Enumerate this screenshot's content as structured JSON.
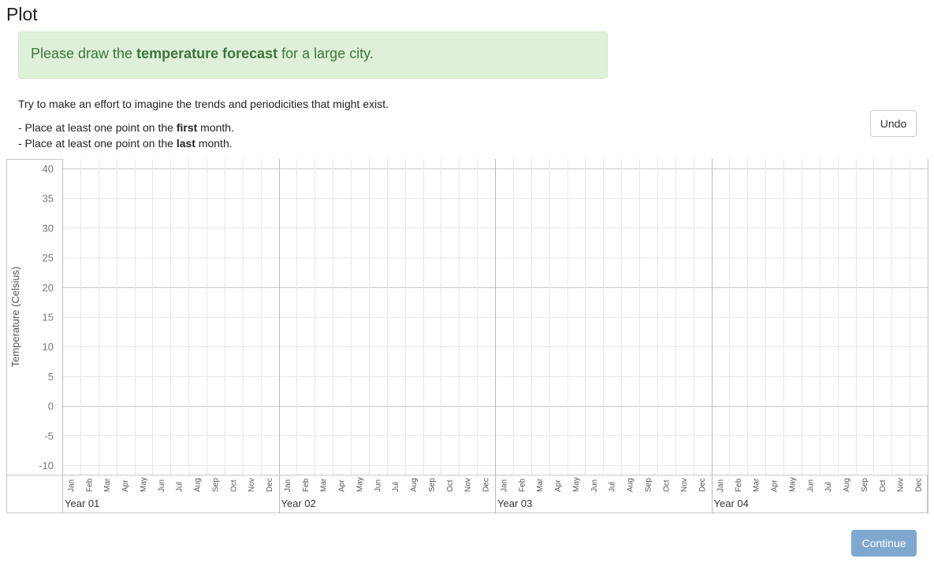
{
  "page": {
    "title": "Plot"
  },
  "alert": {
    "prefix": "Please draw the ",
    "emphasis": "temperature forecast",
    "suffix": " for a large city."
  },
  "instructions": {
    "intro": "Try to make an effort to imagine the trends and periodicities that might exist.",
    "first_prefix": "- Place at least one point on the ",
    "first_bold": "first",
    "first_suffix": " month.",
    "last_prefix": "- Place at least one point on the ",
    "last_bold": "last",
    "last_suffix": " month."
  },
  "buttons": {
    "undo": "Undo",
    "continue": "Continue"
  },
  "colors": {
    "alert_bg": "#dff0d8",
    "alert_text": "#3c763d",
    "continue_bg": "#7fa8cf",
    "grid_major": "#c8c8c8",
    "grid_minor": "#e8e8e8"
  },
  "chart_data": {
    "type": "line",
    "ylabel": "Temperature (Celsius)",
    "ylim": [
      -10,
      40
    ],
    "yticks": [
      40,
      35,
      30,
      25,
      20,
      15,
      10,
      5,
      0,
      -5,
      -10
    ],
    "months": [
      "Jan",
      "Feb",
      "Mar",
      "Apr",
      "May",
      "Jun",
      "Jul",
      "Aug",
      "Sep",
      "Oct",
      "Nov",
      "Dec"
    ],
    "years": [
      "Year 01",
      "Year 02",
      "Year 03",
      "Year 04"
    ],
    "series": [],
    "grid": true
  }
}
